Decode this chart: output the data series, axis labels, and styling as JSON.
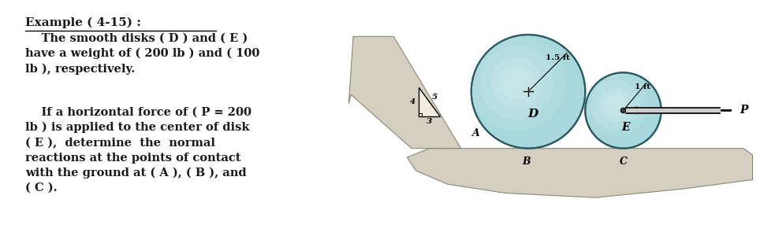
{
  "bg_color": "#ffffff",
  "text_color": "#1a1a1a",
  "title": "Example ( 4-15) :",
  "para1": "    The smooth disks ( D ) and ( E )\nhave a weight of ( 200 lb ) and ( 100\nlb ), respectively.",
  "para2": "    If a horizontal force of ( P = 200\nlb ) is applied to the center of disk\n( E ),  determine  the  normal\nreactions at the points of contact\nwith the ground at ( A ), ( B ), and\n( C ).",
  "disk_D_color_outer": "#a8d8dc",
  "disk_D_color_inner": "#d8eff2",
  "disk_E_color_outer": "#a8d8dc",
  "disk_E_color_inner": "#d8eff2",
  "ground_color": "#d4cfc0",
  "ground_edge_color": "#888878",
  "triangle_color": "#e8e4d8",
  "text_fontsize": 10.5,
  "title_fontsize": 11,
  "label_fontsize": 9,
  "small_fontsize": 7.5
}
